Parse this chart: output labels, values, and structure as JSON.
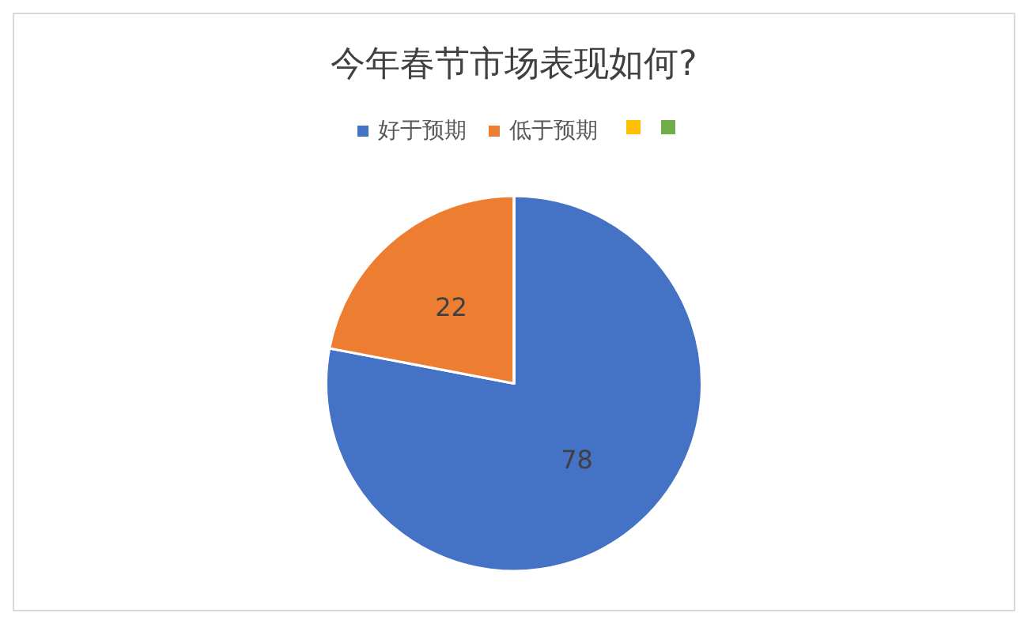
{
  "chart_data": {
    "type": "pie",
    "title": "今年春节市场表现如何?",
    "categories": [
      "好于预期",
      "低于预期",
      null,
      null
    ],
    "values": [
      78,
      22,
      0,
      0
    ],
    "colors": [
      "#4472c4",
      "#ed7d31",
      "#ffc000",
      "#70ad47"
    ],
    "data_labels": true,
    "legend": "top"
  }
}
